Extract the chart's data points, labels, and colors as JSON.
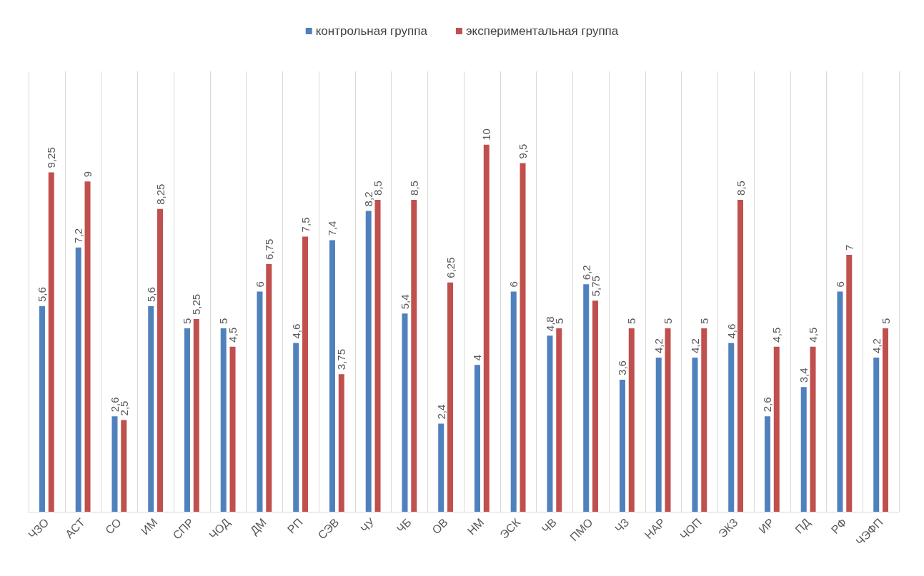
{
  "chart_data": {
    "type": "bar",
    "categories": [
      "ЧЗО",
      "АСТ",
      "СО",
      "ИМ",
      "СПР",
      "ЧОД",
      "ДМ",
      "РП",
      "СЭВ",
      "ЧУ",
      "ЧБ",
      "ОВ",
      "НМ",
      "ЭСК",
      "ЧВ",
      "ПМО",
      "ЧЗ",
      "НАР",
      "ЧОП",
      "ЭКЗ",
      "ИР",
      "ПД",
      "РФ",
      "ЧЭФП"
    ],
    "series": [
      {
        "name": "контрольная группа",
        "color": "#4f81bd",
        "values": [
          5.6,
          7.2,
          2.6,
          5.6,
          5,
          5,
          6,
          4.6,
          7.4,
          8.2,
          5.4,
          2.4,
          4,
          6,
          4.8,
          6.2,
          3.6,
          4.2,
          4.2,
          4.6,
          2.6,
          3.4,
          6,
          4.2
        ],
        "value_labels": [
          "5,6",
          "7,2",
          "2,6",
          "5,6",
          "5",
          "5",
          "6",
          "4,6",
          "7,4",
          "8,2",
          "5,4",
          "2,4",
          "4",
          "6",
          "4,8",
          "6,2",
          "3,6",
          "4,2",
          "4,2",
          "4,6",
          "2,6",
          "3,4",
          "6",
          "4,2"
        ]
      },
      {
        "name": "экспериментальная группа",
        "color": "#c0504d",
        "values": [
          9.25,
          9,
          2.5,
          8.25,
          5.25,
          4.5,
          6.75,
          7.5,
          3.75,
          8.5,
          8.5,
          6.25,
          10,
          9.5,
          5,
          5.75,
          5,
          5,
          5,
          8.5,
          4.5,
          4.5,
          7,
          5
        ],
        "value_labels": [
          "9,25",
          "9",
          "2,5",
          "8,25",
          "5,25",
          "4,5",
          "6,75",
          "7,5",
          "3,75",
          "8,5",
          "8,5",
          "6,25",
          "10",
          "9,5",
          "5",
          "5,75",
          "5",
          "5",
          "5",
          "8,5",
          "4,5",
          "4,5",
          "7",
          "5"
        ]
      }
    ],
    "ylim": [
      0,
      12
    ],
    "tick_labels": "x",
    "grid": "x",
    "legend": "top"
  }
}
